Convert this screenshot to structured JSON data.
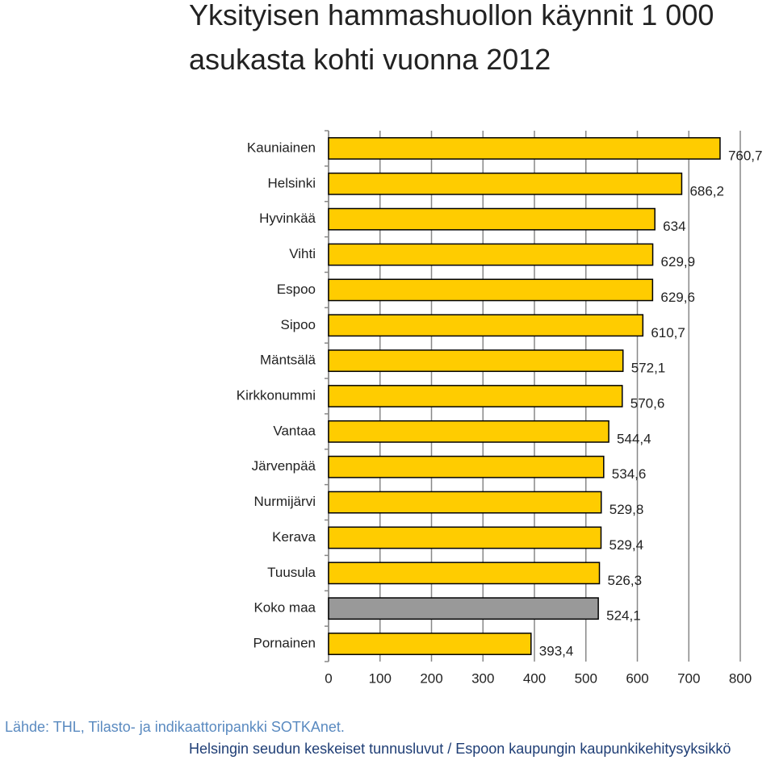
{
  "chart_data": {
    "type": "bar",
    "orientation": "horizontal",
    "title": [
      "Yksityisen hammashuollon käynnit 1 000",
      "asukasta kohti vuonna 2012"
    ],
    "categories": [
      "Kauniainen",
      "Helsinki",
      "Hyvinkää",
      "Vihti",
      "Espoo",
      "Sipoo",
      "Mäntsälä",
      "Kirkkonummi",
      "Vantaa",
      "Järvenpää",
      "Nurmijärvi",
      "Kerava",
      "Tuusula",
      "Koko maa",
      "Pornainen"
    ],
    "values": [
      760.7,
      686.2,
      634,
      629.9,
      629.6,
      610.7,
      572.1,
      570.6,
      544.4,
      534.6,
      529.8,
      529.4,
      526.3,
      524.1,
      393.4
    ],
    "value_labels": [
      "760,7",
      "686,2",
      "634",
      "629,9",
      "629,6",
      "610,7",
      "572,1",
      "570,6",
      "544,4",
      "534,6",
      "529,8",
      "529,4",
      "526,3",
      "524,1",
      "393,4"
    ],
    "colors": [
      "#ffcc00",
      "#ffcc00",
      "#ffcc00",
      "#ffcc00",
      "#ffcc00",
      "#ffcc00",
      "#ffcc00",
      "#ffcc00",
      "#ffcc00",
      "#ffcc00",
      "#ffcc00",
      "#ffcc00",
      "#ffcc00",
      "#999999",
      "#ffcc00"
    ],
    "xlim": [
      0,
      800
    ],
    "xticks": [
      0,
      100,
      200,
      300,
      400,
      500,
      600,
      700,
      800
    ],
    "grid": true,
    "source": "Lähde: THL, Tilasto- ja indikaattoripankki SOTKAnet.",
    "footer": "Helsingin seudun keskeiset tunnusluvut / Espoon kaupungin kaupunkikehitysyksikkö"
  }
}
